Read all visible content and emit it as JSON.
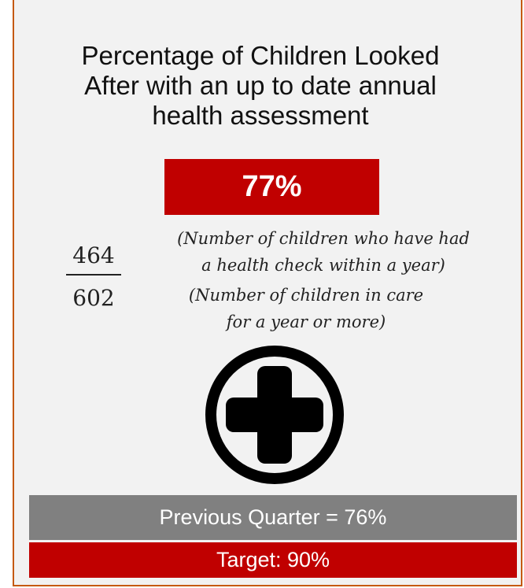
{
  "title": {
    "lines": [
      "Percentage of Children Looked",
      "After with an up to date annual",
      "health assessment"
    ]
  },
  "percentage": "77%",
  "fraction": {
    "numerator": "464",
    "denominator": "602",
    "numerator_description": [
      "(Number of children who have had",
      "a health check within a year)"
    ],
    "denominator_description": [
      "(Number of children in care",
      "for a year or more)"
    ]
  },
  "icon": "medical-cross-icon",
  "previous_quarter": "Previous Quarter = 76%",
  "target": "Target: 90%",
  "colors": {
    "accent_red": "#c00000",
    "previous_gray": "#808080",
    "panel_background": "#f2f2f2",
    "border": "#c55a11"
  }
}
